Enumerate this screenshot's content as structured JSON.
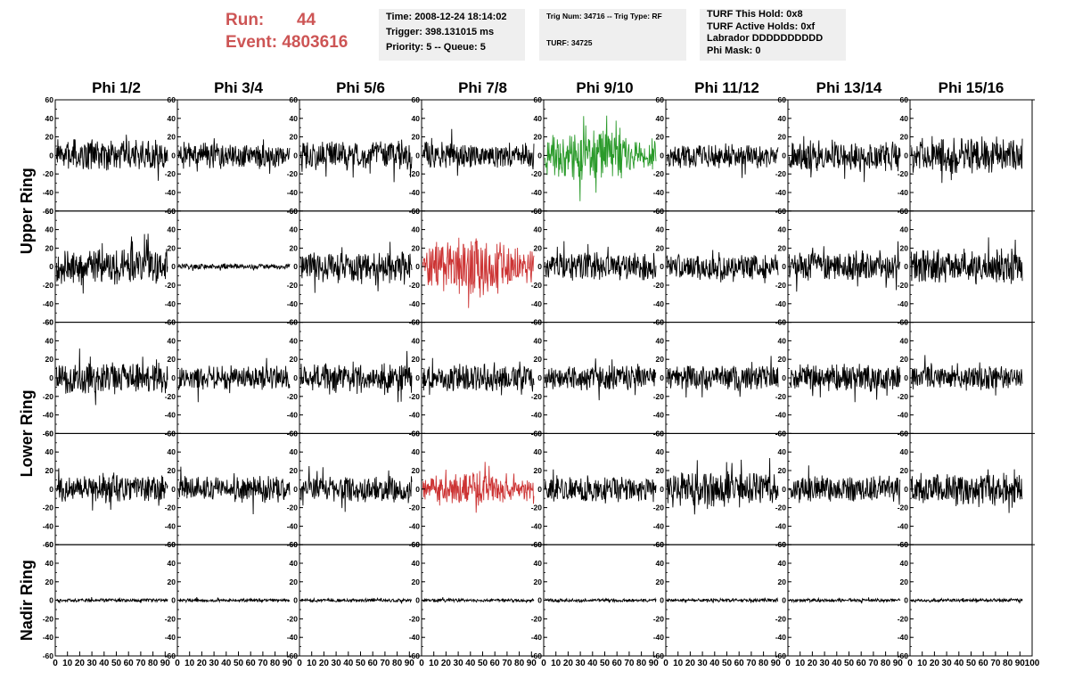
{
  "header": {
    "run_label": "Run:",
    "run_value": "44",
    "event_label": "Event:",
    "event_value": "4803616"
  },
  "info_boxes": [
    {
      "lines": [
        "Time: 2008-12-24 18:14:02",
        "Trigger: 398.131015 ms",
        "Priority: 5 -- Queue: 5"
      ]
    },
    {
      "lines": [
        "Trig Num: 34716 -- Trig Type: RF",
        "",
        "TURF: 34725"
      ]
    },
    {
      "lines": [
        "TURF This Hold: 0x8",
        "TURF Active Holds: 0xf",
        "Labrador DDDDDDDDDD",
        "Phi Mask: 0"
      ]
    }
  ],
  "chart_data": {
    "type": "line",
    "columns": [
      "Phi 1/2",
      "Phi 3/4",
      "Phi 5/6",
      "Phi 7/8",
      "Phi 9/10",
      "Phi 11/12",
      "Phi 13/14",
      "Phi 15/16"
    ],
    "ring_labels": [
      {
        "name": "Upper Ring",
        "rows": [
          0,
          1
        ]
      },
      {
        "name": "Lower Ring",
        "rows": [
          2,
          3
        ]
      },
      {
        "name": "Nadir Ring",
        "rows": [
          4
        ]
      }
    ],
    "xlim": [
      0,
      100
    ],
    "ylim": [
      -60,
      60
    ],
    "x_ticks": [
      "0",
      "10",
      "20",
      "30",
      "40",
      "50",
      "60",
      "70",
      "80",
      "90",
      "100"
    ],
    "y_ticks": [
      "60",
      "40",
      "20",
      "0",
      "-20",
      "-40",
      "-60"
    ],
    "line_color_default": "#000000",
    "highlighted_panels": [
      {
        "row": 0,
        "col": 4,
        "color": "#2a9a2a"
      },
      {
        "row": 1,
        "col": 3,
        "color": "#cc3333"
      },
      {
        "row": 3,
        "col": 3,
        "color": "#cc3333"
      }
    ],
    "amplitudes": [
      [
        14,
        11,
        13,
        12,
        20,
        11,
        14,
        16
      ],
      [
        16,
        2.5,
        14,
        22,
        13,
        12,
        13,
        15
      ],
      [
        15,
        11,
        13,
        12,
        11,
        11,
        12,
        11
      ],
      [
        13,
        12,
        12,
        13,
        12,
        16,
        12,
        15
      ],
      [
        1.5,
        1.5,
        1.5,
        1.5,
        1.5,
        1.5,
        1.5,
        1.5
      ]
    ]
  }
}
